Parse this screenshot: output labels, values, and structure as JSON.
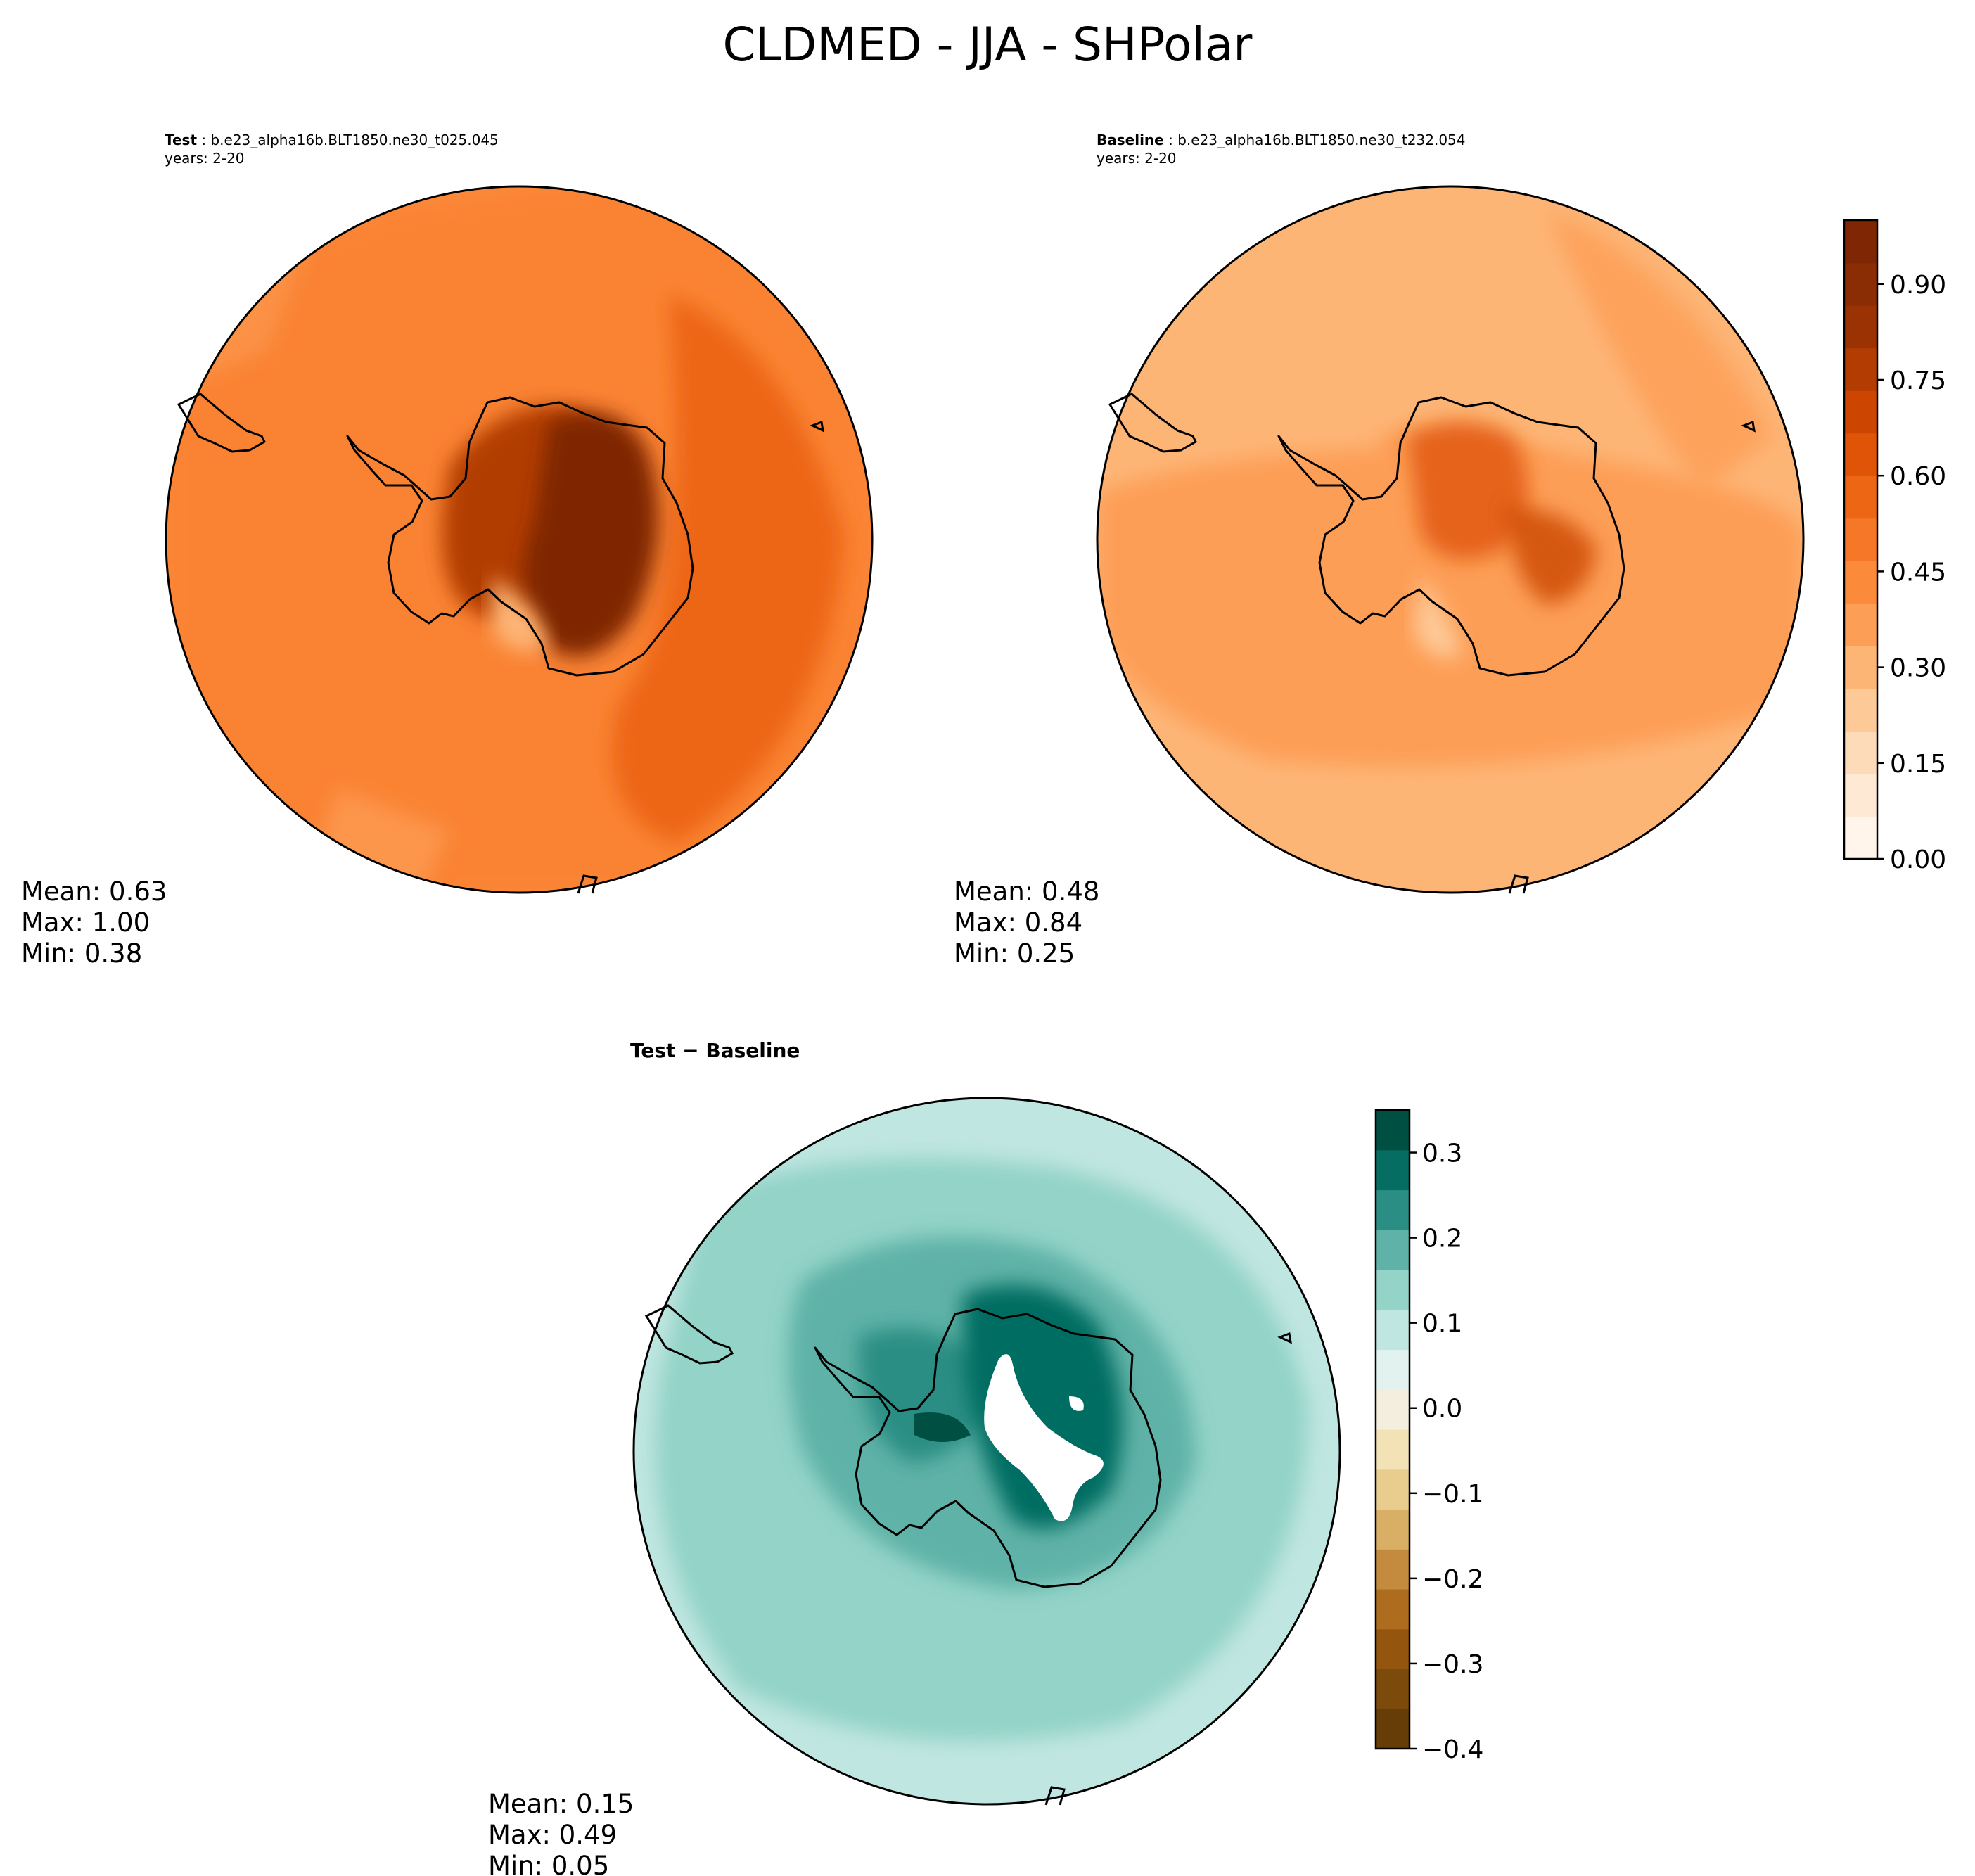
{
  "title": "CLDMED - JJA - SHPolar",
  "panels": {
    "test": {
      "label": "Test",
      "case": "b.e23_alpha16b.BLT1850.ne30_t025.045",
      "years": "years: 2-20",
      "mean": "Mean:  0.63",
      "max": "Max:  1.00",
      "min": "Min:  0.38"
    },
    "baseline": {
      "label": "Baseline",
      "case": "b.e23_alpha16b.BLT1850.ne30_t232.054",
      "years": "years: 2-20",
      "mean": "Mean:  0.48",
      "max": "Max:  0.84",
      "min": "Min:  0.25"
    },
    "diff": {
      "title": "Test − Baseline",
      "mean": "Mean:  0.15",
      "max": "Max:  0.49",
      "min": "Min:  0.05"
    }
  },
  "chart_data": [
    {
      "type": "heatmap",
      "name": "test",
      "projection": "south-polar-stereographic",
      "field": "CLDMED",
      "season": "JJA",
      "stats": {
        "mean": 0.63,
        "max": 1.0,
        "min": 0.38
      }
    },
    {
      "type": "heatmap",
      "name": "baseline",
      "projection": "south-polar-stereographic",
      "field": "CLDMED",
      "season": "JJA",
      "stats": {
        "mean": 0.48,
        "max": 0.84,
        "min": 0.25
      }
    },
    {
      "type": "heatmap",
      "name": "difference",
      "projection": "south-polar-stereographic",
      "stats": {
        "mean": 0.15,
        "max": 0.49,
        "min": 0.05
      }
    }
  ],
  "colorbars": {
    "main": {
      "range": [
        0.0,
        1.0
      ],
      "ticks": [
        "0.00",
        "0.15",
        "0.30",
        "0.45",
        "0.60",
        "0.75",
        "0.90"
      ],
      "tick_values": [
        0.0,
        0.15,
        0.3,
        0.45,
        0.6,
        0.75,
        0.9
      ],
      "colors": [
        "#fff5eb",
        "#fee9d5",
        "#fddbb8",
        "#fdc997",
        "#fdb576",
        "#fd9e56",
        "#fc8a3b",
        "#f77728",
        "#ed6614",
        "#e05407",
        "#cc4602",
        "#b23c02",
        "#9a3203",
        "#8a2c04",
        "#7f2704"
      ]
    },
    "diff": {
      "range": [
        -0.4,
        0.35
      ],
      "ticks": [
        "0.3",
        "0.2",
        "0.1",
        "0.0",
        "−0.1",
        "−0.2",
        "−0.3",
        "−0.4"
      ],
      "tick_values": [
        0.3,
        0.2,
        0.1,
        0.0,
        -0.1,
        -0.2,
        -0.3,
        -0.4
      ],
      "colors": [
        "#663d07",
        "#7c4a0a",
        "#94560f",
        "#ad6c1e",
        "#c48a3e",
        "#d8af65",
        "#e8cd8f",
        "#f2e2b5",
        "#f4eede",
        "#e2f2ef",
        "#c0e6e1",
        "#93d3c8",
        "#5eb2a7",
        "#2a8e84",
        "#066d62",
        "#004f43"
      ]
    }
  }
}
